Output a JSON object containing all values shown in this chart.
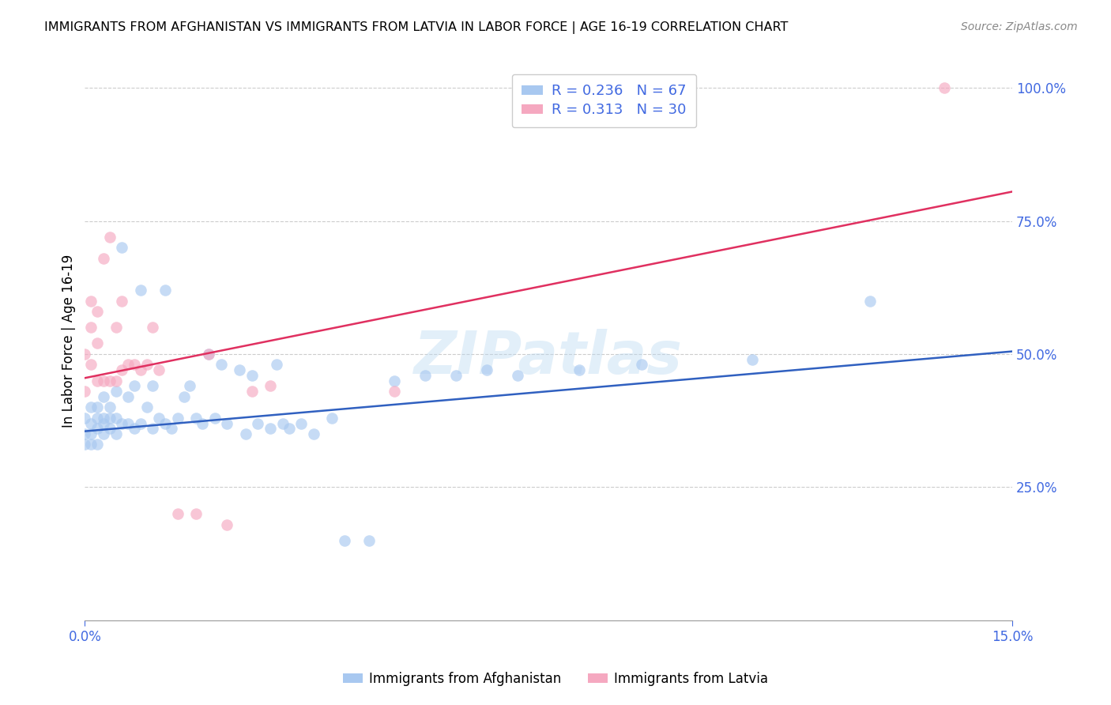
{
  "title": "IMMIGRANTS FROM AFGHANISTAN VS IMMIGRANTS FROM LATVIA IN LABOR FORCE | AGE 16-19 CORRELATION CHART",
  "source": "Source: ZipAtlas.com",
  "ylabel": "In Labor Force | Age 16-19",
  "xlim": [
    0.0,
    0.15
  ],
  "ylim": [
    0.0,
    1.05
  ],
  "afghanistan_color": "#a8c8f0",
  "latvia_color": "#f5a8c0",
  "afghanistan_line_color": "#3060c0",
  "latvia_line_color": "#e03060",
  "afghanistan_R": 0.236,
  "afghanistan_N": 67,
  "latvia_R": 0.313,
  "latvia_N": 30,
  "watermark": "ZIPatlas",
  "af_line_x0": 0.0,
  "af_line_y0": 0.355,
  "af_line_x1": 0.15,
  "af_line_y1": 0.505,
  "lv_line_x0": 0.0,
  "lv_line_y0": 0.455,
  "lv_line_x1": 0.15,
  "lv_line_y1": 0.805,
  "afghanistan_points_x": [
    0.0,
    0.0,
    0.0,
    0.001,
    0.001,
    0.001,
    0.001,
    0.002,
    0.002,
    0.002,
    0.002,
    0.003,
    0.003,
    0.003,
    0.003,
    0.004,
    0.004,
    0.004,
    0.005,
    0.005,
    0.005,
    0.006,
    0.006,
    0.007,
    0.007,
    0.008,
    0.008,
    0.009,
    0.009,
    0.01,
    0.011,
    0.011,
    0.012,
    0.013,
    0.013,
    0.014,
    0.015,
    0.016,
    0.017,
    0.018,
    0.019,
    0.02,
    0.021,
    0.022,
    0.023,
    0.025,
    0.026,
    0.027,
    0.028,
    0.03,
    0.031,
    0.032,
    0.033,
    0.035,
    0.037,
    0.04,
    0.042,
    0.046,
    0.05,
    0.055,
    0.06,
    0.065,
    0.07,
    0.08,
    0.09,
    0.108,
    0.127
  ],
  "afghanistan_points_y": [
    0.33,
    0.35,
    0.38,
    0.33,
    0.35,
    0.37,
    0.4,
    0.33,
    0.36,
    0.38,
    0.4,
    0.35,
    0.37,
    0.38,
    0.42,
    0.36,
    0.38,
    0.4,
    0.35,
    0.38,
    0.43,
    0.37,
    0.7,
    0.37,
    0.42,
    0.36,
    0.44,
    0.37,
    0.62,
    0.4,
    0.36,
    0.44,
    0.38,
    0.37,
    0.62,
    0.36,
    0.38,
    0.42,
    0.44,
    0.38,
    0.37,
    0.5,
    0.38,
    0.48,
    0.37,
    0.47,
    0.35,
    0.46,
    0.37,
    0.36,
    0.48,
    0.37,
    0.36,
    0.37,
    0.35,
    0.38,
    0.15,
    0.15,
    0.45,
    0.46,
    0.46,
    0.47,
    0.46,
    0.47,
    0.48,
    0.49,
    0.6
  ],
  "latvia_points_x": [
    0.0,
    0.0,
    0.001,
    0.001,
    0.001,
    0.002,
    0.002,
    0.002,
    0.003,
    0.003,
    0.004,
    0.004,
    0.005,
    0.005,
    0.006,
    0.006,
    0.007,
    0.008,
    0.009,
    0.01,
    0.011,
    0.012,
    0.015,
    0.018,
    0.02,
    0.023,
    0.027,
    0.03,
    0.05,
    0.139
  ],
  "latvia_points_y": [
    0.43,
    0.5,
    0.48,
    0.55,
    0.6,
    0.45,
    0.52,
    0.58,
    0.45,
    0.68,
    0.45,
    0.72,
    0.45,
    0.55,
    0.47,
    0.6,
    0.48,
    0.48,
    0.47,
    0.48,
    0.55,
    0.47,
    0.2,
    0.2,
    0.5,
    0.18,
    0.43,
    0.44,
    0.43,
    1.0
  ]
}
